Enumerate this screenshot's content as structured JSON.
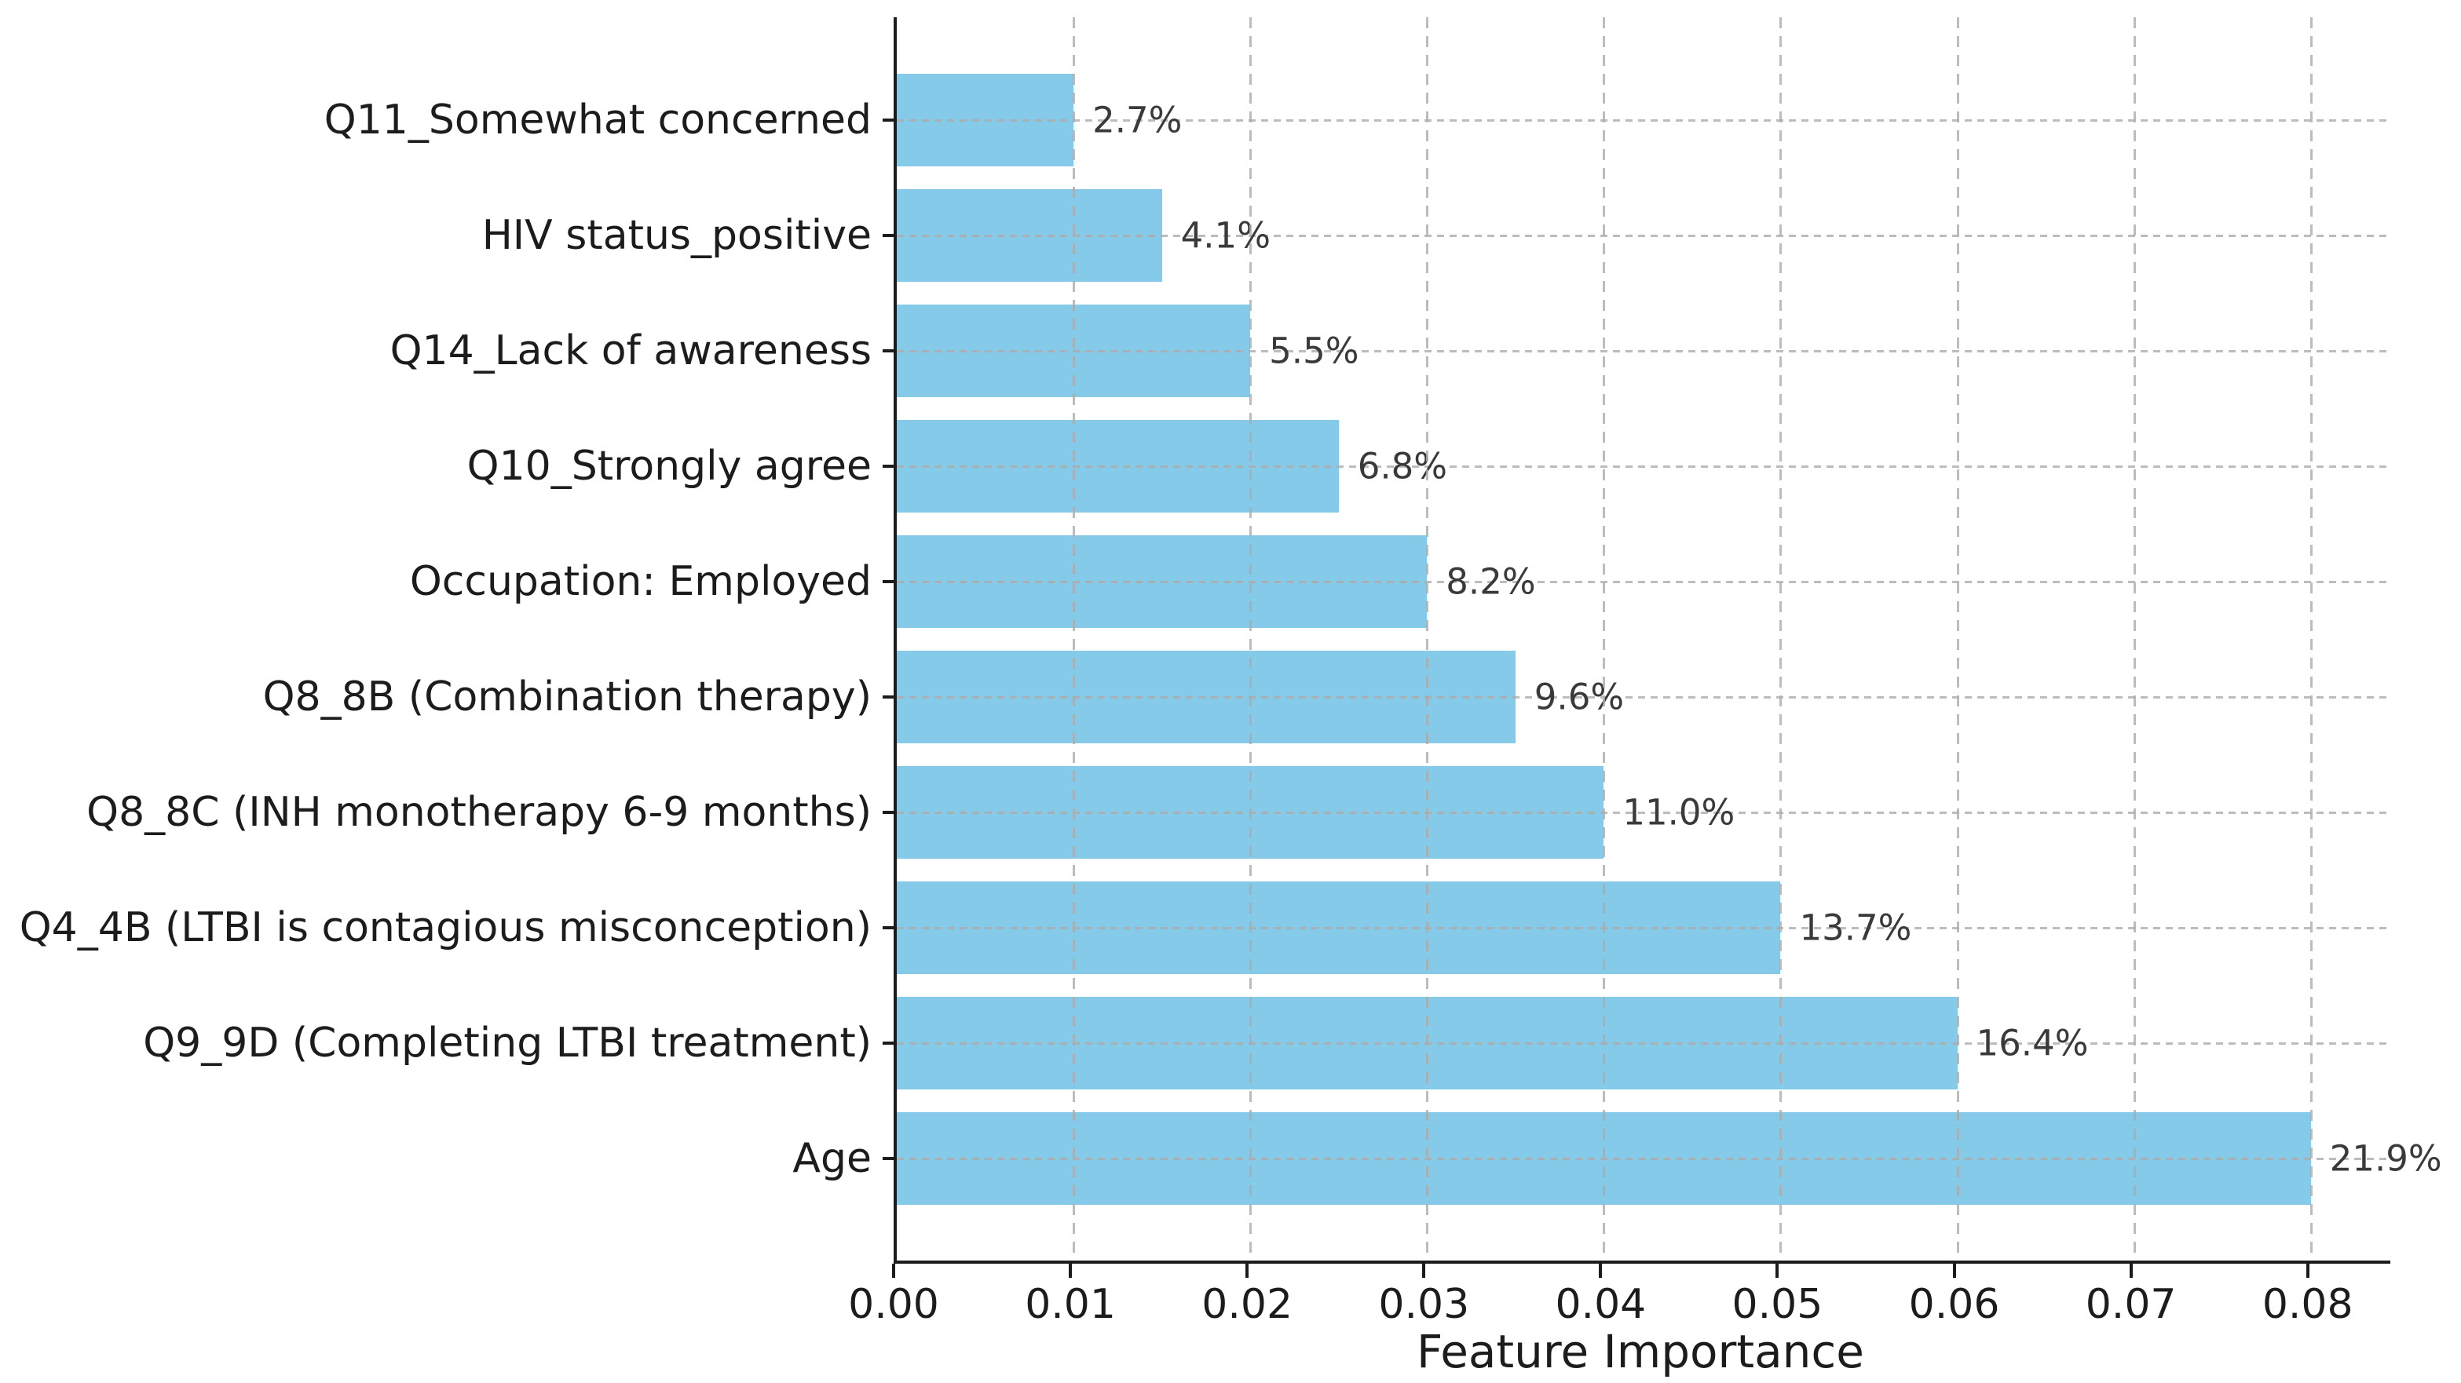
{
  "figure": {
    "background": "#ffffff",
    "axis_color": "#1c1c1c",
    "grid_color": "#acacac",
    "grid_style": "dashed"
  },
  "chart_data": {
    "type": "bar",
    "orientation": "horizontal",
    "title": "",
    "xlabel": "Feature Importance",
    "ylabel": "",
    "categories": [
      "Q11_Somewhat concerned",
      "HIV status_positive",
      "Q14_Lack of awareness",
      "Q10_Strongly agree",
      "Occupation: Employed",
      "Q8_8B (Combination therapy)",
      "Q8_8C (INH monotherapy 6-9 months)",
      "Q4_4B (LTBI is contagious misconception)",
      "Q9_9D (Completing LTBI treatment)",
      "Age"
    ],
    "values": [
      0.01,
      0.015,
      0.02,
      0.025,
      0.03,
      0.035,
      0.04,
      0.05,
      0.06,
      0.08
    ],
    "bar_labels": [
      "2.7%",
      "4.1%",
      "5.5%",
      "6.8%",
      "8.2%",
      "9.6%",
      "11.0%",
      "13.7%",
      "16.4%",
      "21.9%"
    ],
    "x_tick_values": [
      0.0,
      0.01,
      0.02,
      0.03,
      0.04,
      0.05,
      0.06,
      0.07,
      0.08
    ],
    "x_tick_labels": [
      "0.00",
      "0.01",
      "0.02",
      "0.03",
      "0.04",
      "0.05",
      "0.06",
      "0.07",
      "0.08"
    ],
    "xlim": [
      0,
      0.0845
    ],
    "bar_color": "#85CBE9",
    "bar_label_color": "#3a3a3a",
    "grid": true,
    "legend": null
  }
}
